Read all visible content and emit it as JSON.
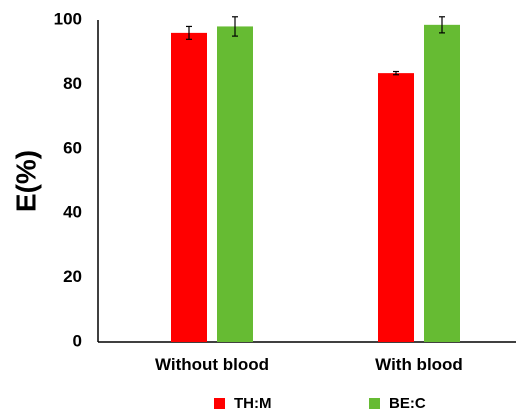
{
  "chart_data": {
    "type": "bar",
    "title": "",
    "xlabel": "",
    "ylabel": "E(%)",
    "ylim": [
      0,
      100
    ],
    "yticks": [
      0,
      20,
      40,
      60,
      80,
      100
    ],
    "categories": [
      "Without blood",
      "With blood"
    ],
    "series": [
      {
        "name": "TH:M",
        "color": "#ff0000",
        "values": [
          96,
          83.5
        ],
        "errors": [
          2,
          0.5
        ]
      },
      {
        "name": "BE:C",
        "color": "#66bb33",
        "values": [
          98,
          98.5
        ],
        "errors": [
          3,
          2.5
        ]
      }
    ],
    "legend_position": "bottom",
    "grid": false
  }
}
